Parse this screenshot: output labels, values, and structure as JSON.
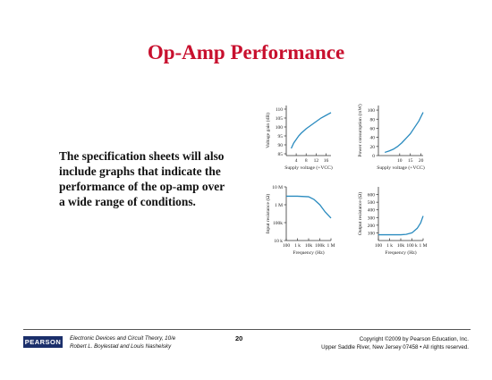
{
  "slide": {
    "title": "Op-Amp Performance",
    "body_lines": [
      "The specification sheets will also",
      "include graphs that indicate the",
      "performance of the op-amp over",
      "a wide range of conditions."
    ]
  },
  "chart_data": [
    {
      "id": "voltage-gain",
      "type": "line",
      "xlabel": "Supply voltage (+VCC)",
      "ylabel": "Voltage gain (dB)",
      "xlim": [
        0,
        18
      ],
      "ylim": [
        84,
        112
      ],
      "x_ticks": [
        4,
        8,
        12,
        16
      ],
      "x_tick_labels": [
        "4",
        "8",
        "12",
        "16"
      ],
      "y_ticks": [
        85,
        90,
        95,
        100,
        105,
        110
      ],
      "y_tick_labels": [
        "85",
        "90",
        "95",
        "100",
        "105",
        "110"
      ],
      "x": [
        2,
        3,
        4,
        5,
        6,
        8,
        10,
        12,
        14,
        16,
        18
      ],
      "y": [
        88,
        91,
        93,
        95,
        96.5,
        99,
        101,
        103,
        105,
        106.5,
        108
      ],
      "color": "#2a8bbf"
    },
    {
      "id": "power-consumption",
      "type": "line",
      "xlabel": "Supply voltage (+VCC)",
      "ylabel": "Power consumption (mW)",
      "xlim": [
        0,
        21
      ],
      "ylim": [
        0,
        110
      ],
      "x_ticks": [
        10,
        15,
        20
      ],
      "x_tick_labels": [
        "10",
        "15",
        "20"
      ],
      "y_ticks": [
        0,
        20,
        40,
        60,
        80,
        100
      ],
      "y_tick_labels": [
        "0",
        "20",
        "40",
        "60",
        "80",
        "100"
      ],
      "x": [
        3,
        5,
        7,
        9,
        11,
        13,
        15,
        17,
        19,
        21
      ],
      "y": [
        7,
        10,
        14,
        20,
        28,
        38,
        48,
        62,
        76,
        95
      ],
      "color": "#2a8bbf"
    },
    {
      "id": "input-resistance",
      "type": "line",
      "xlabel": "Frequency (Hz)",
      "ylabel": "Input resistance (Ω)",
      "xscale": "log",
      "yscale": "log",
      "xlim": [
        100,
        1000000
      ],
      "ylim": [
        10000,
        10000000
      ],
      "x_ticks": [
        100,
        1000,
        10000,
        100000,
        1000000
      ],
      "x_tick_labels": [
        "100",
        "1 k",
        "10k",
        "100k",
        "1 M"
      ],
      "y_ticks": [
        10000,
        100000,
        1000000,
        10000000
      ],
      "y_tick_labels": [
        "10 k",
        "100k",
        "1 M",
        "10 M"
      ],
      "x": [
        100,
        1000,
        10000,
        30000,
        100000,
        300000,
        1000000
      ],
      "y": [
        3000000,
        3000000,
        2800000,
        2000000,
        1000000,
        400000,
        180000
      ],
      "color": "#2a8bbf"
    },
    {
      "id": "output-resistance",
      "type": "line",
      "xlabel": "Frequency (Hz)",
      "ylabel": "Output resistance (Ω)",
      "xscale": "log",
      "xlim": [
        100,
        1000000
      ],
      "ylim": [
        0,
        700
      ],
      "x_ticks": [
        100,
        1000,
        10000,
        100000,
        1000000
      ],
      "x_tick_labels": [
        "100",
        "1 k",
        "10k",
        "100 k",
        "1 M"
      ],
      "y_ticks": [
        100,
        200,
        300,
        400,
        500,
        600
      ],
      "y_tick_labels": [
        "100",
        "200",
        "300",
        "400",
        "500",
        "600"
      ],
      "x": [
        100,
        1000,
        10000,
        30000,
        100000,
        300000,
        600000,
        1000000
      ],
      "y": [
        75,
        75,
        75,
        80,
        100,
        160,
        230,
        320
      ],
      "color": "#2a8bbf"
    }
  ],
  "footer": {
    "logo": "PEARSON",
    "book_line1": "Electronic Devices and Circuit Theory, 10/e",
    "book_line2": "Robert L. Boylestad and Louis Nashelsky",
    "page_number": "20",
    "copyright_line1": "Copyright ©2009 by Pearson Education, Inc.",
    "copyright_line2": "Upper Saddle River, New Jersey 07458 • All rights reserved."
  }
}
